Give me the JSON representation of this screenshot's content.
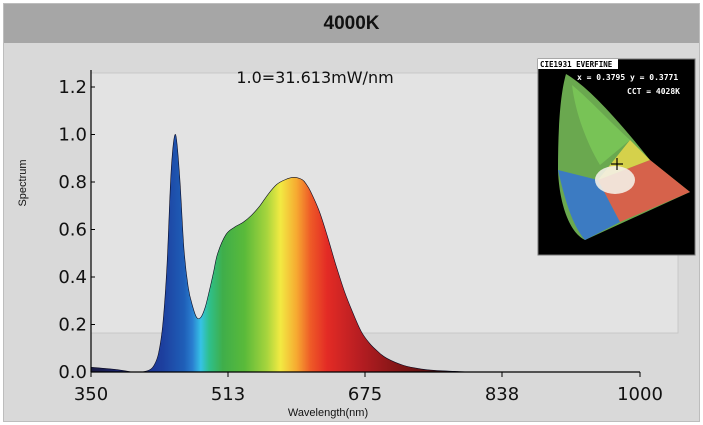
{
  "chart_data": {
    "type": "area",
    "title": "4000K",
    "annotation": "1.0=31.613mW/nm",
    "xlabel": "Wavelength(nm)",
    "ylabel": "Spectrum",
    "xlim": [
      350,
      1000
    ],
    "ylim": [
      0,
      1.2
    ],
    "xticks": [
      "350",
      "513",
      "675",
      "838",
      "1000"
    ],
    "yticks": [
      "0.0",
      "0.2",
      "0.4",
      "0.6",
      "0.8",
      "1.0",
      "1.2"
    ],
    "grid": false,
    "fill": "spectral rainbow gradient",
    "x": [
      350,
      380,
      400,
      410,
      420,
      425,
      430,
      435,
      440,
      445,
      450,
      455,
      460,
      465,
      470,
      475,
      480,
      485,
      490,
      495,
      500,
      510,
      520,
      530,
      540,
      550,
      560,
      570,
      580,
      590,
      600,
      605,
      610,
      620,
      630,
      640,
      650,
      660,
      670,
      680,
      690,
      700,
      720,
      740,
      760,
      780,
      800,
      850,
      900,
      1000
    ],
    "y": [
      0.02,
      0.01,
      0.0,
      0.0,
      0.01,
      0.03,
      0.08,
      0.2,
      0.45,
      0.85,
      1.0,
      0.82,
      0.52,
      0.36,
      0.28,
      0.23,
      0.23,
      0.27,
      0.34,
      0.42,
      0.5,
      0.58,
      0.61,
      0.63,
      0.66,
      0.7,
      0.75,
      0.79,
      0.81,
      0.82,
      0.81,
      0.79,
      0.76,
      0.68,
      0.57,
      0.45,
      0.34,
      0.25,
      0.17,
      0.12,
      0.085,
      0.058,
      0.028,
      0.013,
      0.006,
      0.003,
      0.0,
      0.0,
      0.0,
      0.0
    ],
    "inset": {
      "title": "CIE1931 EVERFINE",
      "coords": "x = 0.3795  y = 0.3771",
      "cct": "CCT = 4028K"
    }
  }
}
